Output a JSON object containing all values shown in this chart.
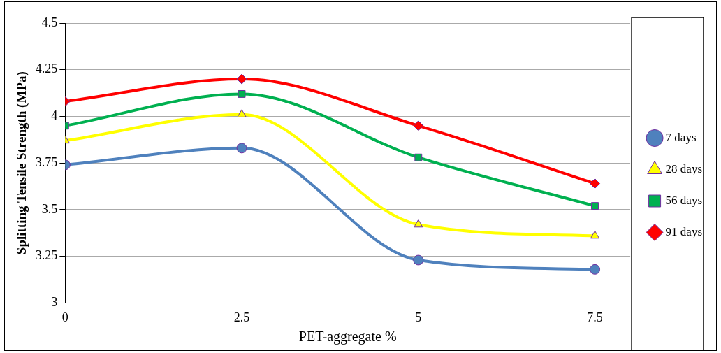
{
  "chart_data": {
    "type": "line",
    "xlabel": "PET-aggregate %",
    "ylabel": "Splitting Tensile Strength (MPa)",
    "x": [
      0,
      2.5,
      5,
      7.5
    ],
    "xlim": [
      0,
      8
    ],
    "xticks": [
      0,
      2.5,
      5,
      7.5
    ],
    "ylim": [
      3,
      4.5
    ],
    "yticks": [
      3,
      3.25,
      3.5,
      3.75,
      4,
      4.25,
      4.5
    ],
    "grid": "y",
    "legend": "right",
    "series": [
      {
        "name": "7 days",
        "color": "#4f81bd",
        "marker": "circle",
        "values": [
          3.74,
          3.83,
          3.23,
          3.18
        ]
      },
      {
        "name": "28 days",
        "color": "#ffff00",
        "marker": "triangle",
        "values": [
          3.87,
          4.01,
          3.42,
          3.36
        ]
      },
      {
        "name": "56 days",
        "color": "#00b050",
        "marker": "square",
        "values": [
          3.95,
          4.12,
          3.78,
          3.52
        ]
      },
      {
        "name": "91 days",
        "color": "#ff0000",
        "marker": "diamond",
        "values": [
          4.08,
          4.2,
          3.95,
          3.64
        ]
      }
    ]
  }
}
